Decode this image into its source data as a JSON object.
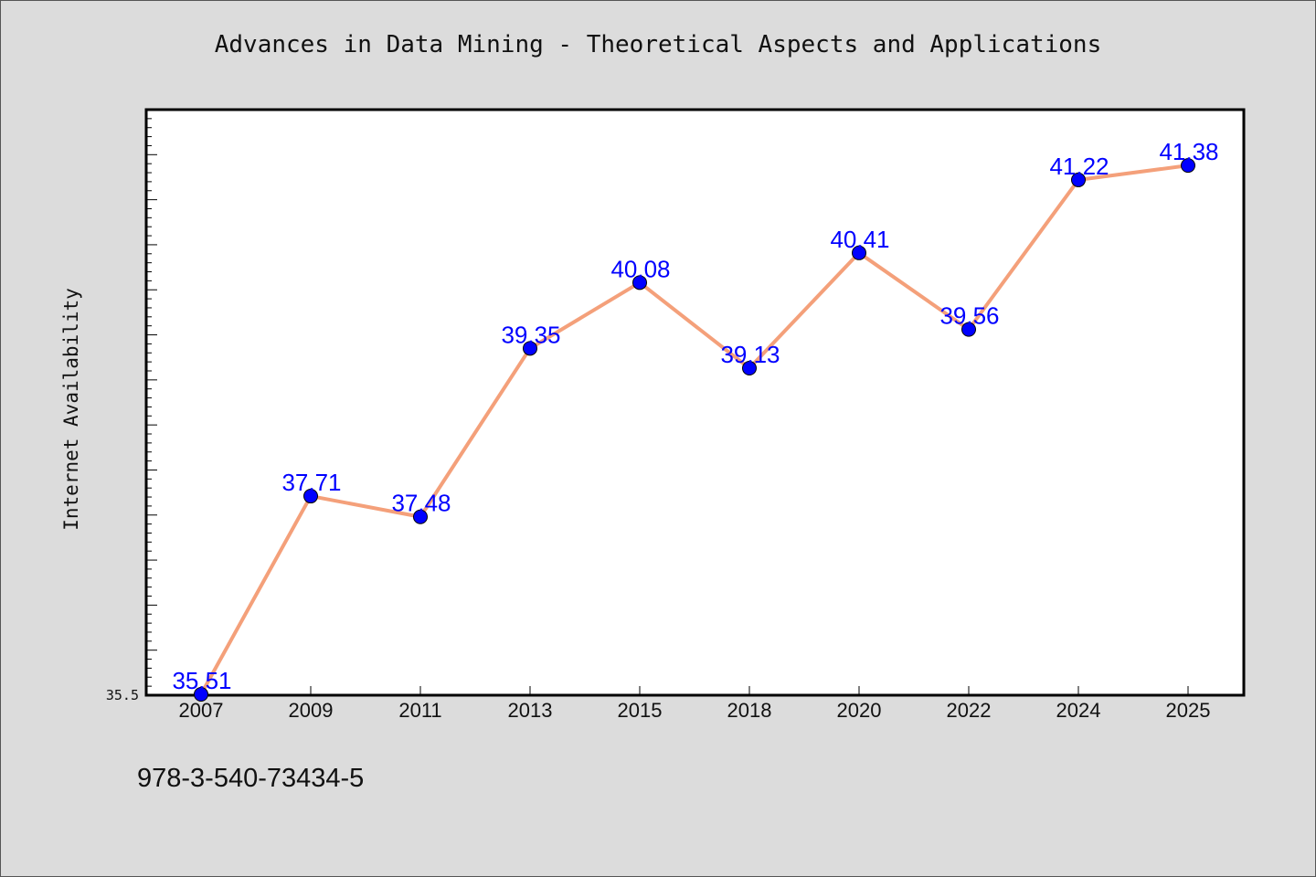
{
  "chart_data": {
    "type": "line",
    "title": "Advances in Data Mining - Theoretical Aspects and Applications",
    "xlabel": "",
    "ylabel": "Internet Availability",
    "categories": [
      "2007",
      "2009",
      "2011",
      "2013",
      "2015",
      "2018",
      "2020",
      "2022",
      "2024",
      "2025"
    ],
    "series": [
      {
        "values": [
          35.51,
          37.71,
          37.48,
          39.35,
          40.08,
          39.13,
          40.41,
          39.56,
          41.22,
          41.38
        ]
      }
    ],
    "data_labels": [
      "35.51",
      "37.71",
      "37.48",
      "39.35",
      "40.08",
      "39.13",
      "40.41",
      "39.56",
      "41.22",
      "41.38"
    ],
    "y_tick_labels": [
      "35.5"
    ],
    "ylim": [
      35.5,
      42.0
    ],
    "grid": false,
    "line_color": "#f4a07a",
    "marker_color": "#0000ff",
    "label_color": "#0000ff"
  },
  "footnote": "978-3-540-73434-5"
}
